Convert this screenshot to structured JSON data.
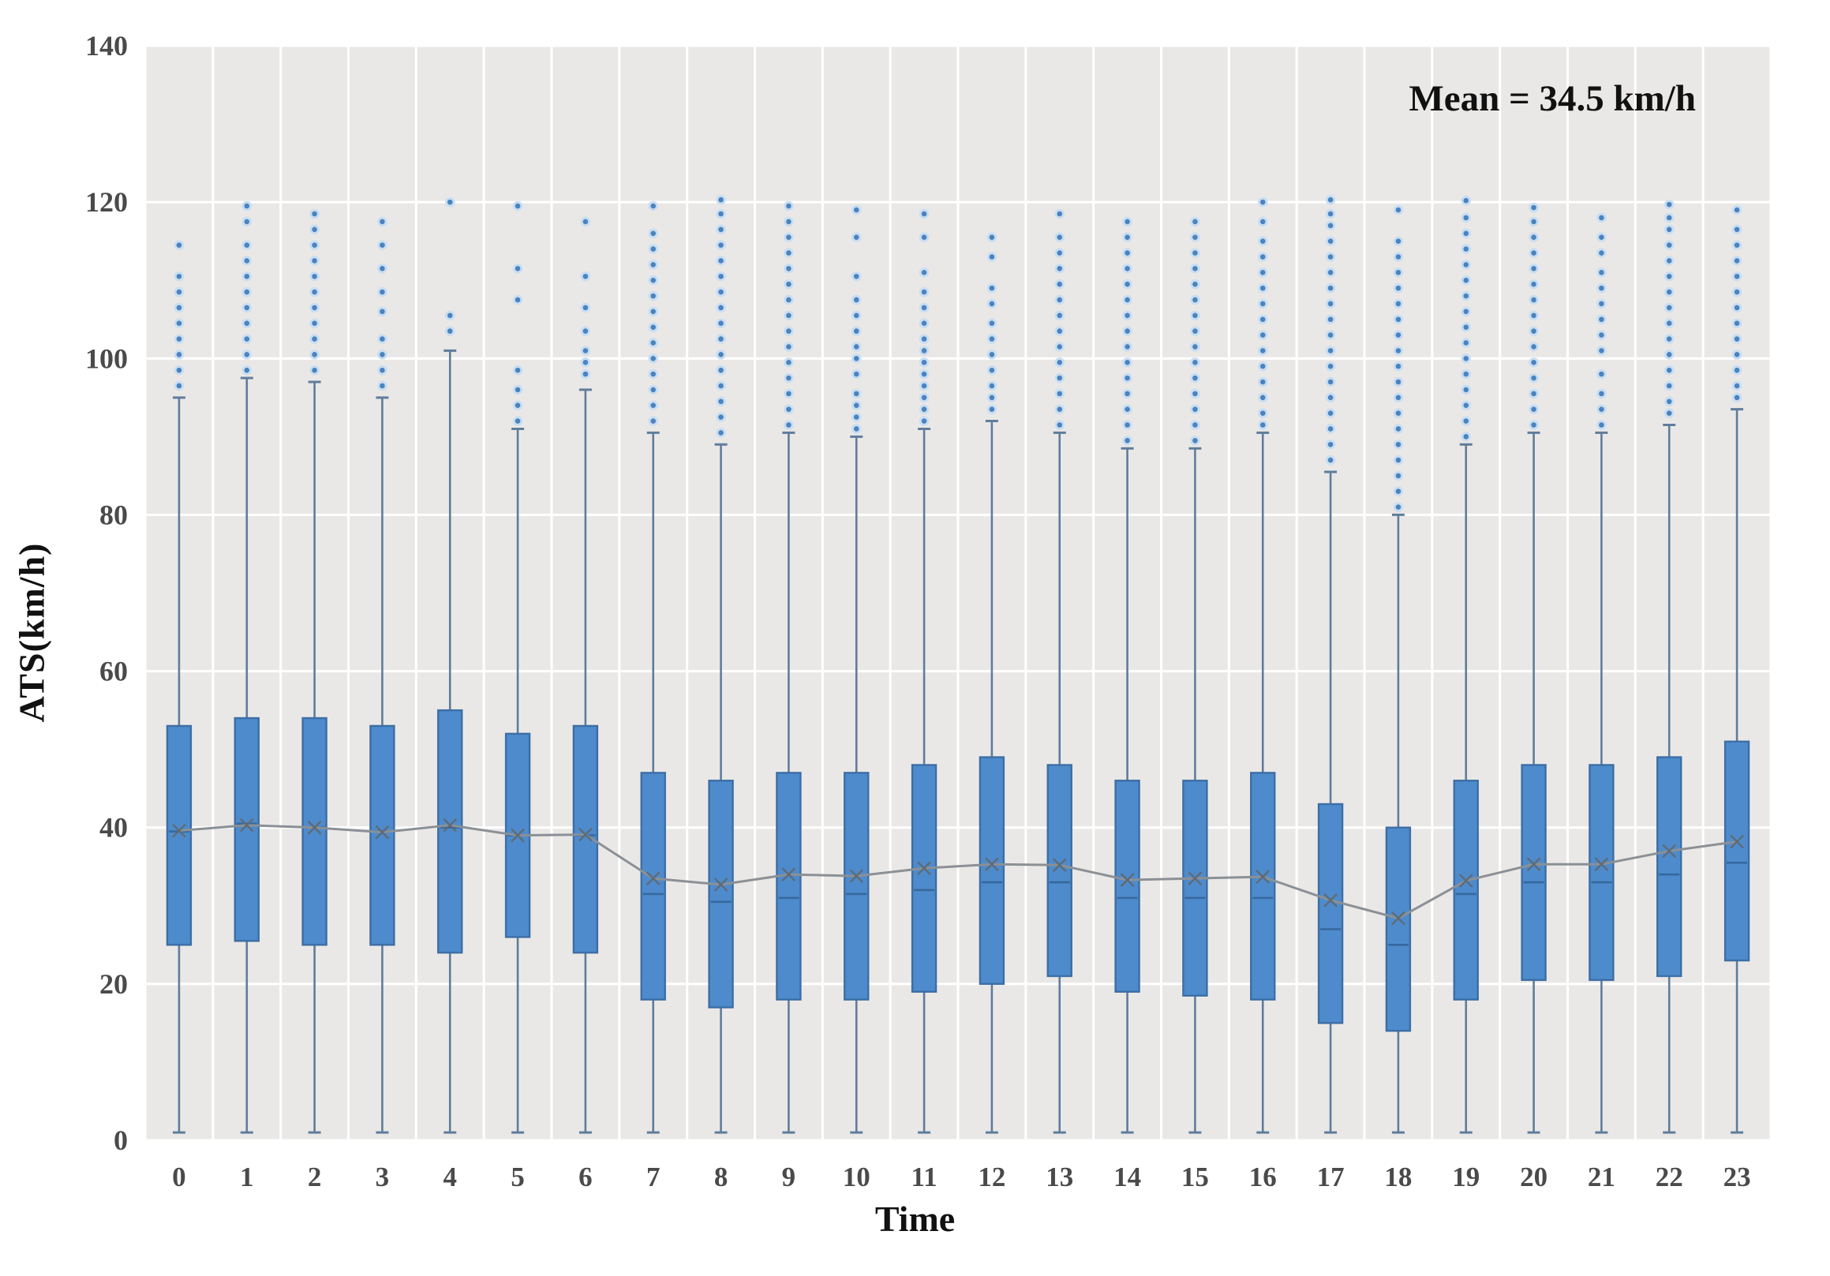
{
  "figure": {
    "annotation": "Mean = 34.5 km/h",
    "x_axis_label": "Time",
    "y_axis_label": "ATS(km/h)"
  },
  "chart_data": {
    "type": "boxplot",
    "title": "",
    "xlabel": "Time",
    "ylabel": "ATS(km/h)",
    "annotation": "Mean = 34.5 km/h",
    "ylim": [
      0,
      140
    ],
    "yticks": [
      0,
      20,
      40,
      60,
      80,
      100,
      120,
      140
    ],
    "categories": [
      "0",
      "1",
      "2",
      "3",
      "4",
      "5",
      "6",
      "7",
      "8",
      "9",
      "10",
      "11",
      "12",
      "13",
      "14",
      "15",
      "16",
      "17",
      "18",
      "19",
      "20",
      "21",
      "22",
      "23"
    ],
    "grid": {
      "horizontal": true,
      "vertical": true
    },
    "legend_position": "none",
    "has_mean_line": true,
    "series": [
      {
        "hour": "0",
        "whisker_low": 1,
        "q1": 25,
        "median": 39.5,
        "q3": 53,
        "whisker_high": 95,
        "mean": 39.6,
        "outliers": [
          96.5,
          98.5,
          100.5,
          102.5,
          104.5,
          106.5,
          108.5,
          110.5,
          114.5
        ]
      },
      {
        "hour": "1",
        "whisker_low": 1,
        "q1": 25.5,
        "median": 40.5,
        "q3": 54,
        "whisker_high": 97.5,
        "mean": 40.3,
        "outliers": [
          98.5,
          100.5,
          102.5,
          104.5,
          106.5,
          108.5,
          110.5,
          112.5,
          114.5,
          117.5,
          119.5
        ]
      },
      {
        "hour": "2",
        "whisker_low": 1,
        "q1": 25,
        "median": 40,
        "q3": 54,
        "whisker_high": 97,
        "mean": 40.0,
        "outliers": [
          98.5,
          100.5,
          102.5,
          104.5,
          106.5,
          108.5,
          110.5,
          112.5,
          114.5,
          116.5,
          118.5
        ]
      },
      {
        "hour": "3",
        "whisker_low": 1,
        "q1": 25,
        "median": 39.5,
        "q3": 53,
        "whisker_high": 95,
        "mean": 39.4,
        "outliers": [
          96.5,
          98.5,
          100.5,
          102.5,
          106,
          108.5,
          111.5,
          114.5,
          117.5
        ]
      },
      {
        "hour": "4",
        "whisker_low": 1,
        "q1": 24,
        "median": 40,
        "q3": 55,
        "whisker_high": 101,
        "mean": 40.3,
        "outliers": [
          103.5,
          105.5,
          120
        ]
      },
      {
        "hour": "5",
        "whisker_low": 1,
        "q1": 26,
        "median": 39,
        "q3": 52,
        "whisker_high": 91,
        "mean": 39.0,
        "outliers": [
          92,
          94,
          96,
          98.5,
          107.5,
          111.5,
          119.5
        ]
      },
      {
        "hour": "6",
        "whisker_low": 1,
        "q1": 24,
        "median": 39,
        "q3": 53,
        "whisker_high": 96,
        "mean": 39.1,
        "outliers": [
          98,
          99.5,
          101,
          103.5,
          106.5,
          110.5,
          117.5
        ]
      },
      {
        "hour": "7",
        "whisker_low": 1,
        "q1": 18,
        "median": 31.5,
        "q3": 47,
        "whisker_high": 90.5,
        "mean": 33.5,
        "outliers": [
          92,
          94,
          96,
          98,
          100,
          102,
          104,
          106,
          108,
          110,
          112,
          114,
          116,
          119.5
        ]
      },
      {
        "hour": "8",
        "whisker_low": 1,
        "q1": 17,
        "median": 30.5,
        "q3": 46,
        "whisker_high": 89,
        "mean": 32.7,
        "outliers": [
          90.5,
          92.5,
          94.5,
          96.5,
          98.5,
          100.5,
          102.5,
          104.5,
          106.5,
          108.5,
          110.5,
          112.5,
          114.5,
          116.5,
          118.5,
          120.3
        ]
      },
      {
        "hour": "9",
        "whisker_low": 1,
        "q1": 18,
        "median": 31,
        "q3": 47,
        "whisker_high": 90.5,
        "mean": 34.0,
        "outliers": [
          91.5,
          93.5,
          95.5,
          97.5,
          99.5,
          101.5,
          103.5,
          105.5,
          107.5,
          109.5,
          111.5,
          113.5,
          115.5,
          117.5,
          119.5
        ]
      },
      {
        "hour": "10",
        "whisker_low": 1,
        "q1": 18,
        "median": 31.5,
        "q3": 47,
        "whisker_high": 90,
        "mean": 33.8,
        "outliers": [
          91,
          92.5,
          94,
          95.5,
          98,
          100,
          101.5,
          103.5,
          105.5,
          107.5,
          110.5,
          115.5,
          119
        ]
      },
      {
        "hour": "11",
        "whisker_low": 1,
        "q1": 19,
        "median": 32,
        "q3": 48,
        "whisker_high": 91,
        "mean": 34.8,
        "outliers": [
          92,
          93.5,
          95,
          96.5,
          98,
          99.5,
          101,
          102.5,
          104.5,
          106.5,
          108.5,
          111,
          115.5,
          118.5
        ]
      },
      {
        "hour": "12",
        "whisker_low": 1,
        "q1": 20,
        "median": 33,
        "q3": 49,
        "whisker_high": 92,
        "mean": 35.3,
        "outliers": [
          93.5,
          95,
          96.5,
          98.5,
          100.5,
          102.5,
          104.5,
          107,
          109,
          113,
          115.5
        ]
      },
      {
        "hour": "13",
        "whisker_low": 1,
        "q1": 21,
        "median": 33,
        "q3": 48,
        "whisker_high": 90.5,
        "mean": 35.2,
        "outliers": [
          91.5,
          93.5,
          95.5,
          97.5,
          99.5,
          101.5,
          103.5,
          105.5,
          107.5,
          109.5,
          111.5,
          113.5,
          115.5,
          118.5
        ]
      },
      {
        "hour": "14",
        "whisker_low": 1,
        "q1": 19,
        "median": 31,
        "q3": 46,
        "whisker_high": 88.5,
        "mean": 33.3,
        "outliers": [
          89.5,
          91.5,
          93.5,
          95.5,
          97.5,
          99.5,
          101.5,
          103.5,
          105.5,
          107.5,
          109.5,
          111.5,
          113.5,
          115.5,
          117.5
        ]
      },
      {
        "hour": "15",
        "whisker_low": 1,
        "q1": 18.5,
        "median": 31,
        "q3": 46,
        "whisker_high": 88.5,
        "mean": 33.5,
        "outliers": [
          89.5,
          91.5,
          93.5,
          95.5,
          97.5,
          99.5,
          101.5,
          103.5,
          105.5,
          107.5,
          109.5,
          111.5,
          113.5,
          115.5,
          117.5
        ]
      },
      {
        "hour": "16",
        "whisker_low": 1,
        "q1": 18,
        "median": 31,
        "q3": 47,
        "whisker_high": 90.5,
        "mean": 33.7,
        "outliers": [
          91.5,
          93,
          95,
          97,
          99,
          101,
          103,
          105,
          107,
          109,
          111,
          113,
          115,
          117.5,
          120
        ]
      },
      {
        "hour": "17",
        "whisker_low": 1,
        "q1": 15,
        "median": 27,
        "q3": 43,
        "whisker_high": 85.5,
        "mean": 30.7,
        "outliers": [
          87,
          89,
          91,
          93,
          95,
          97,
          99,
          101,
          103,
          105,
          107,
          109,
          111,
          113,
          115,
          117,
          118.5,
          120.3
        ]
      },
      {
        "hour": "18",
        "whisker_low": 1,
        "q1": 14,
        "median": 25,
        "q3": 40,
        "whisker_high": 80,
        "mean": 28.4,
        "outliers": [
          81,
          83,
          85,
          87,
          89,
          91,
          93,
          95,
          97,
          99,
          101,
          103,
          105,
          107,
          109,
          111,
          113,
          115,
          119
        ]
      },
      {
        "hour": "19",
        "whisker_low": 1,
        "q1": 18,
        "median": 31.5,
        "q3": 46,
        "whisker_high": 89,
        "mean": 33.2,
        "outliers": [
          90,
          92,
          94,
          96,
          98,
          100,
          102,
          104,
          106,
          108,
          110,
          112,
          114,
          116,
          118,
          120.2
        ]
      },
      {
        "hour": "20",
        "whisker_low": 1,
        "q1": 20.5,
        "median": 33,
        "q3": 48,
        "whisker_high": 90.5,
        "mean": 35.3,
        "outliers": [
          91.5,
          93.5,
          95.5,
          97.5,
          99.5,
          101.5,
          103.5,
          105.5,
          107.5,
          109.5,
          111.5,
          113.5,
          115.5,
          117.5,
          119.3
        ]
      },
      {
        "hour": "21",
        "whisker_low": 1,
        "q1": 20.5,
        "median": 33,
        "q3": 48,
        "whisker_high": 90.5,
        "mean": 35.3,
        "outliers": [
          91.5,
          93.5,
          95.5,
          98,
          101,
          103,
          105,
          107,
          109,
          111,
          113.5,
          115.5,
          118
        ]
      },
      {
        "hour": "22",
        "whisker_low": 1,
        "q1": 21,
        "median": 34,
        "q3": 49,
        "whisker_high": 91.5,
        "mean": 37.0,
        "outliers": [
          93,
          94.5,
          96.5,
          98.5,
          100.5,
          102.5,
          104.5,
          106.5,
          108.5,
          110.5,
          112.5,
          114.5,
          116.5,
          118,
          119.7
        ]
      },
      {
        "hour": "23",
        "whisker_low": 1,
        "q1": 23,
        "median": 35.5,
        "q3": 51,
        "whisker_high": 93.5,
        "mean": 38.2,
        "outliers": [
          95,
          96.5,
          98.5,
          100.5,
          102.5,
          104.5,
          106.5,
          108.5,
          110.5,
          112.5,
          114.5,
          116.5,
          119
        ]
      }
    ],
    "colors": {
      "box_fill": "#4E8BCC",
      "box_border": "#3C6EA5",
      "whisker": "#5F7D9C",
      "median": "#36689E",
      "mean_marker": "#5F6B76",
      "mean_line": "#8A9096",
      "outlier_fill": "#4C83BF",
      "outlier_halo": "#C8DEF2",
      "plot_bg": "#EAE8E6",
      "gridline": "#FFFFFF",
      "tick_color": "#4A4A4A"
    }
  }
}
